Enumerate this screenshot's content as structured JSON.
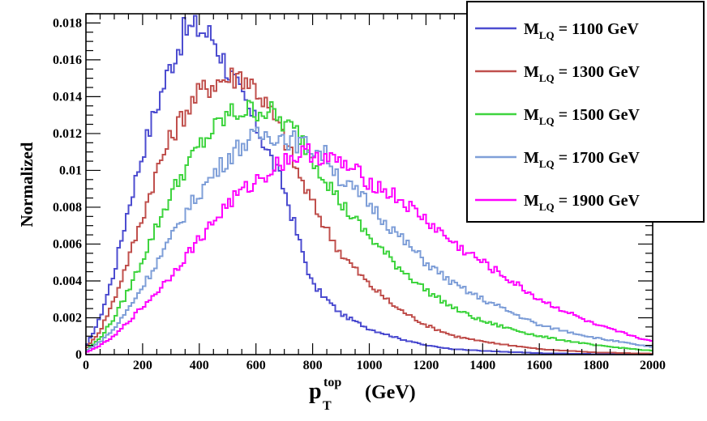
{
  "chart_data": {
    "type": "line",
    "ylabel": "Normalized",
    "xlabel_main": "p",
    "xlabel_sup": "top",
    "xlabel_sub": "T",
    "xlabel_unit": "(GeV)",
    "xlim": [
      0,
      2000
    ],
    "ylim": [
      0,
      0.0185
    ],
    "x_ticks": [
      0,
      200,
      400,
      600,
      800,
      1000,
      1200,
      1400,
      1600,
      1800,
      2000
    ],
    "y_ticks": [
      0,
      0.002,
      0.004,
      0.006,
      0.008,
      0.01,
      0.012,
      0.014,
      0.016,
      0.018
    ],
    "y_tick_labels": [
      "0",
      "0.002",
      "0.004",
      "0.006",
      "0.008",
      "0.01",
      "0.012",
      "0.014",
      "0.016",
      "0.018"
    ],
    "legend_position": "top-right",
    "series": [
      {
        "name": "1100 GeV",
        "legend_prefix": "M",
        "legend_sub": "LQ",
        "legend_mid": " = ",
        "legend_value": "1100 GeV",
        "color": "#4d4dd0",
        "x": [
          0,
          50,
          100,
          150,
          200,
          250,
          300,
          350,
          400,
          450,
          500,
          550,
          600,
          650,
          700,
          750,
          800,
          850,
          900,
          1000,
          1100,
          1200,
          1300,
          1400,
          1600,
          1800,
          2000
        ],
        "values": [
          0.0004,
          0.002,
          0.0045,
          0.008,
          0.011,
          0.0135,
          0.0158,
          0.0176,
          0.0177,
          0.0172,
          0.0155,
          0.014,
          0.0125,
          0.0108,
          0.009,
          0.0063,
          0.0038,
          0.003,
          0.0022,
          0.0014,
          0.0009,
          0.0005,
          0.0003,
          0.0002,
          8e-05,
          3e-05,
          1e-05
        ]
      },
      {
        "name": "1300 GeV",
        "legend_prefix": "M",
        "legend_sub": "LQ",
        "legend_mid": " = ",
        "legend_value": "1300 GeV",
        "color": "#c0504d",
        "x": [
          0,
          50,
          100,
          150,
          200,
          250,
          300,
          350,
          400,
          450,
          500,
          550,
          600,
          650,
          700,
          750,
          800,
          850,
          900,
          1000,
          1100,
          1200,
          1300,
          1400,
          1600,
          1800,
          2000
        ],
        "values": [
          0.0003,
          0.0013,
          0.003,
          0.0052,
          0.0075,
          0.01,
          0.0118,
          0.0132,
          0.0142,
          0.0148,
          0.015,
          0.0152,
          0.0145,
          0.0132,
          0.0118,
          0.0098,
          0.0082,
          0.0068,
          0.0055,
          0.0038,
          0.0025,
          0.0016,
          0.001,
          0.0007,
          0.0003,
          0.00012,
          5e-05
        ]
      },
      {
        "name": "1500 GeV",
        "legend_prefix": "M",
        "legend_sub": "LQ",
        "legend_mid": "  = ",
        "legend_value": "1500 GeV",
        "color": "#3fd43f",
        "x": [
          0,
          50,
          100,
          150,
          200,
          250,
          300,
          350,
          400,
          450,
          500,
          550,
          600,
          650,
          700,
          750,
          800,
          850,
          900,
          1000,
          1100,
          1200,
          1300,
          1400,
          1600,
          1800,
          2000
        ],
        "values": [
          0.0002,
          0.0009,
          0.002,
          0.0035,
          0.0052,
          0.007,
          0.0087,
          0.0101,
          0.0113,
          0.0122,
          0.013,
          0.0132,
          0.0133,
          0.0132,
          0.0125,
          0.012,
          0.0107,
          0.0095,
          0.0082,
          0.0064,
          0.0048,
          0.0035,
          0.0025,
          0.0018,
          0.001,
          0.0005,
          0.0002
        ]
      },
      {
        "name": "1700 GeV",
        "legend_prefix": "M",
        "legend_sub": "LQ",
        "legend_mid": " = ",
        "legend_value": "1700 GeV",
        "color": "#7f9fd8",
        "x": [
          0,
          50,
          100,
          150,
          200,
          250,
          300,
          350,
          400,
          450,
          500,
          550,
          600,
          650,
          700,
          750,
          800,
          850,
          900,
          1000,
          1100,
          1200,
          1300,
          1400,
          1600,
          1800,
          2000
        ],
        "values": [
          0.0002,
          0.0007,
          0.0014,
          0.0025,
          0.0037,
          0.005,
          0.0063,
          0.0077,
          0.0088,
          0.0098,
          0.0107,
          0.0114,
          0.0118,
          0.012,
          0.0118,
          0.0115,
          0.0112,
          0.0108,
          0.0095,
          0.0082,
          0.0065,
          0.005,
          0.0038,
          0.003,
          0.0016,
          0.0009,
          0.0004
        ]
      },
      {
        "name": "1900 GeV",
        "legend_prefix": "M",
        "legend_sub": "LQ",
        "legend_mid": " = ",
        "legend_value": "1900 GeV",
        "color": "#ff00ff",
        "x": [
          0,
          50,
          100,
          150,
          200,
          250,
          300,
          350,
          400,
          450,
          500,
          550,
          600,
          650,
          700,
          750,
          800,
          850,
          900,
          1000,
          1100,
          1200,
          1300,
          1400,
          1600,
          1800,
          2000
        ],
        "values": [
          0.0001,
          0.0005,
          0.001,
          0.0018,
          0.0026,
          0.0034,
          0.0043,
          0.0053,
          0.0063,
          0.0072,
          0.0082,
          0.0088,
          0.0094,
          0.01,
          0.0106,
          0.0108,
          0.011,
          0.0106,
          0.0104,
          0.0094,
          0.0085,
          0.0073,
          0.006,
          0.005,
          0.003,
          0.0016,
          0.0007
        ]
      }
    ]
  }
}
